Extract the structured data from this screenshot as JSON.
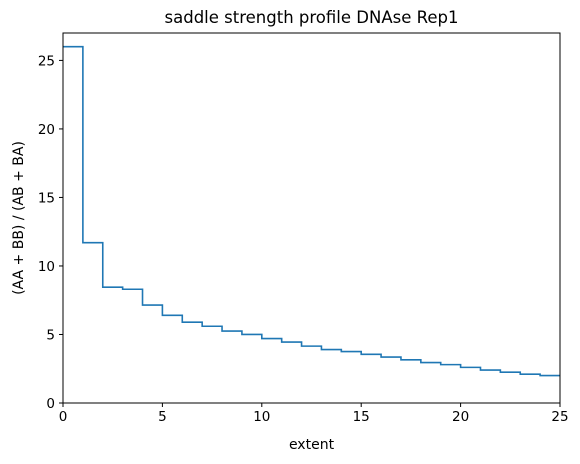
{
  "chart_data": {
    "type": "line",
    "drawstyle": "steps-post",
    "title": "saddle strength profile DNAse Rep1",
    "xlabel": "extent",
    "ylabel": "(AA + BB) / (AB + BA)",
    "xlim": [
      0,
      25
    ],
    "ylim": [
      0,
      27
    ],
    "grid": false,
    "line_color": "#1f77b4",
    "xticks": [
      0,
      5,
      10,
      15,
      20,
      25
    ],
    "yticks": [
      0,
      5,
      10,
      15,
      20,
      25
    ],
    "x": [
      0,
      1,
      2,
      3,
      4,
      5,
      6,
      7,
      8,
      9,
      10,
      11,
      12,
      13,
      14,
      15,
      16,
      17,
      18,
      19,
      20,
      21,
      22,
      23,
      24,
      25
    ],
    "y": [
      26.0,
      11.7,
      8.45,
      8.3,
      7.15,
      6.4,
      5.9,
      5.6,
      5.25,
      5.0,
      4.7,
      4.45,
      4.15,
      3.9,
      3.75,
      3.55,
      3.35,
      3.15,
      2.95,
      2.8,
      2.6,
      2.4,
      2.25,
      2.1,
      2.0,
      2.0
    ]
  }
}
